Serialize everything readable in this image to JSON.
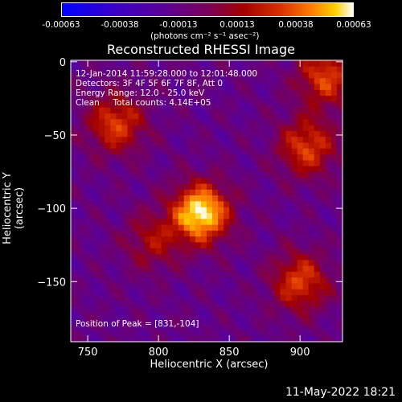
{
  "colorbar": {
    "ticks": [
      "-0.00063",
      "-0.00038",
      "-0.00013",
      "0.00013",
      "0.00038",
      "0.00063"
    ],
    "unit": "(photons cm⁻² s⁻¹ asec⁻²)"
  },
  "chart_data": {
    "type": "heatmap",
    "title": "Reconstructed RHESSI Image",
    "xlabel": "Heliocentric X (arcsec)",
    "ylabel": "Heliocentric Y (arcsec)",
    "xlim": [
      738,
      930
    ],
    "ylim": [
      -191,
      1
    ],
    "xticks": [
      750,
      800,
      850,
      900
    ],
    "yticks": [
      0,
      -50,
      -100,
      -150
    ],
    "color_range": [
      -0.00063,
      0.00063
    ],
    "colormap": "blue-purple-red-yellow-white",
    "peak": {
      "x": 831,
      "y": -104
    },
    "annotations": [
      "12-Jan-2014 11:59:28.000 to 12:01:48.000",
      "Detectors: 3F 4F 5F 6F 7F 8F, Att 0",
      "Energy Range: 12.0 - 25.0 keV",
      "Clean     Total counts: 4.14E+05",
      "Position of Peak = [831,-104]"
    ],
    "bright_regions": [
      {
        "x": 830,
        "y": -103,
        "level": "peak"
      },
      {
        "x": 770,
        "y": -42,
        "level": "high"
      },
      {
        "x": 905,
        "y": -58,
        "level": "high"
      },
      {
        "x": 918,
        "y": -10,
        "level": "high"
      },
      {
        "x": 900,
        "y": -150,
        "level": "high"
      },
      {
        "x": 796,
        "y": -122,
        "level": "medium"
      }
    ]
  },
  "footer": {
    "date": "11-May-2022 18:21"
  }
}
